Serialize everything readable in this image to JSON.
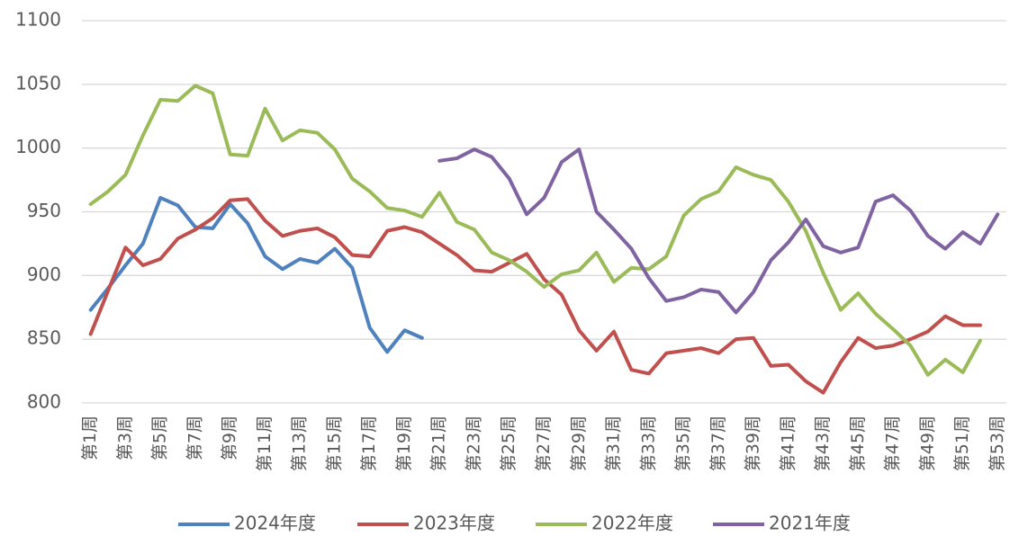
{
  "chart_data": {
    "type": "line",
    "categories": [
      "第1周",
      null,
      "第3周",
      null,
      "第5周",
      null,
      "第7周",
      null,
      "第9周",
      null,
      "第11周",
      null,
      "第13周",
      null,
      "第15周",
      null,
      "第17周",
      null,
      "第19周",
      null,
      "第21周",
      null,
      "第23周",
      null,
      "第25周",
      null,
      "第27周",
      null,
      "第29周",
      null,
      "第31周",
      null,
      "第33周",
      null,
      "第35周",
      null,
      "第37周",
      null,
      "第39周",
      null,
      "第41周",
      null,
      "第43周",
      null,
      "第45周",
      null,
      "第47周",
      null,
      "第49周",
      null,
      "第51周",
      null,
      "第53周"
    ],
    "series": [
      {
        "name": "2024年度",
        "color": "#4e81bd",
        "values": [
          873,
          890,
          908,
          925,
          961,
          955,
          938,
          937,
          956,
          941,
          915,
          905,
          913,
          910,
          921,
          906,
          859,
          840,
          857,
          851,
          null,
          null,
          null,
          null,
          null,
          null,
          null,
          null,
          null,
          null,
          null,
          null,
          null,
          null,
          null,
          null,
          null,
          null,
          null,
          null,
          null,
          null,
          null,
          null,
          null,
          null,
          null,
          null,
          null,
          null,
          null,
          null,
          null
        ]
      },
      {
        "name": "2023年度",
        "color": "#c0504d",
        "values": [
          854,
          888,
          922,
          908,
          913,
          929,
          936,
          945,
          959,
          960,
          943,
          931,
          935,
          937,
          930,
          916,
          915,
          935,
          938,
          934,
          925,
          916,
          904,
          903,
          910,
          917,
          897,
          885,
          857,
          841,
          856,
          826,
          823,
          839,
          841,
          843,
          839,
          850,
          851,
          829,
          830,
          817,
          808,
          832,
          851,
          843,
          845,
          850,
          856,
          868,
          861,
          861,
          null
        ]
      },
      {
        "name": "2022年度",
        "color": "#9bbb59",
        "values": [
          956,
          966,
          979,
          1010,
          1038,
          1037,
          1049,
          1043,
          995,
          994,
          1031,
          1006,
          1014,
          1012,
          999,
          976,
          966,
          953,
          951,
          946,
          965,
          942,
          936,
          918,
          912,
          903,
          891,
          901,
          904,
          918,
          895,
          906,
          905,
          915,
          947,
          960,
          966,
          985,
          979,
          975,
          958,
          935,
          902,
          873,
          886,
          870,
          858,
          845,
          822,
          834,
          824,
          849,
          null
        ]
      },
      {
        "name": "2021年度",
        "color": "#8064a2",
        "values": [
          null,
          null,
          null,
          null,
          null,
          null,
          null,
          null,
          null,
          null,
          null,
          null,
          null,
          null,
          null,
          null,
          null,
          null,
          null,
          null,
          990,
          992,
          999,
          993,
          976,
          948,
          961,
          989,
          999,
          950,
          936,
          921,
          898,
          880,
          883,
          889,
          887,
          871,
          887,
          912,
          926,
          944,
          923,
          918,
          922,
          958,
          963,
          951,
          931,
          921,
          934,
          925,
          948
        ]
      }
    ],
    "ylim": [
      800,
      1100
    ],
    "yticks": [
      800,
      850,
      900,
      950,
      1000,
      1050,
      1100
    ],
    "grid": true,
    "legend": "bottom"
  }
}
